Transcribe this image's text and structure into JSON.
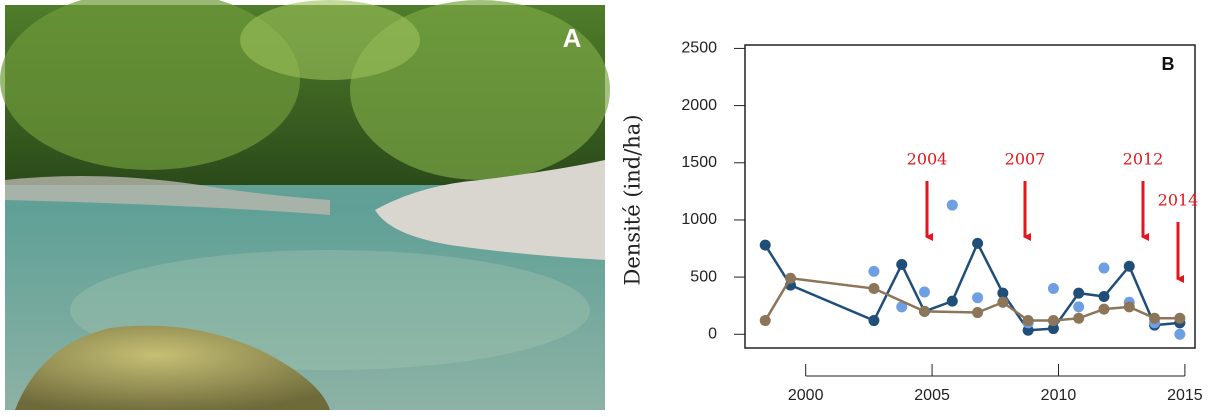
{
  "photo": {
    "label": "A"
  },
  "chart_data": {
    "type": "scatter",
    "panel_label": "B",
    "y_label": "Densité (ind/ha)",
    "xlim": [
      1997.6,
      2015.4
    ],
    "xticks": [
      2000,
      2005,
      2010,
      2015
    ],
    "ylim": [
      -120,
      2530
    ],
    "yticks": [
      0,
      500,
      1000,
      1500,
      2000,
      2500
    ],
    "grid": false,
    "series": [
      {
        "color": "#1f4e79",
        "line": true,
        "x": [
          1998.4,
          1999.4,
          2002.7,
          2003.8,
          2004.7,
          2005.8,
          2006.8,
          2007.8,
          2008.8,
          2009.8,
          2010.8,
          2011.8,
          2012.8,
          2013.8,
          2014.8
        ],
        "values": [
          780,
          430,
          120,
          610,
          200,
          290,
          795,
          360,
          35,
          50,
          360,
          330,
          595,
          80,
          100
        ]
      },
      {
        "color": "#6f9fe3",
        "line": false,
        "x": [
          2002.7,
          2003.8,
          2004.7,
          2005.8,
          2006.8,
          2007.8,
          2008.8,
          2009.8,
          2010.8,
          2011.8,
          2012.8,
          2013.8,
          2014.8
        ],
        "values": [
          550,
          240,
          370,
          1130,
          320,
          280,
          100,
          400,
          240,
          580,
          280,
          100,
          0
        ]
      },
      {
        "color": "#8c7558",
        "line": true,
        "x": [
          1998.4,
          1999.4,
          2002.7,
          2004.7,
          2006.8,
          2007.8,
          2008.8,
          2009.8,
          2010.8,
          2011.8,
          2012.8,
          2013.8,
          2014.8
        ],
        "values": [
          120,
          490,
          400,
          200,
          190,
          280,
          120,
          120,
          140,
          220,
          240,
          140,
          140
        ]
      }
    ],
    "annotations": [
      "2004",
      "2007",
      "2012",
      "2014"
    ],
    "annotation_color": "#e3161b"
  }
}
